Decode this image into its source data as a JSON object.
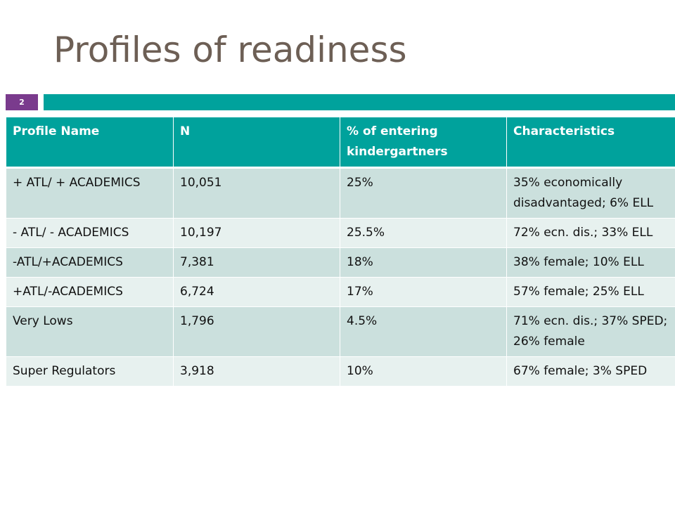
{
  "slide": {
    "title": "Profiles of readiness",
    "number": "2"
  },
  "colors": {
    "accent_teal": "#00a29c",
    "number_purple": "#7a3b8d",
    "title_brown": "#6d5f55",
    "row_dark": "#cbe0dd",
    "row_light": "#e7f1ef"
  },
  "table": {
    "headers": [
      "Profile Name",
      "N",
      "% of entering kindergartners",
      "Characteristics"
    ],
    "rows": [
      [
        "+ ATL/ + ACADEMICS",
        "10,051",
        "25%",
        "35% economically disadvantaged; 6% ELL"
      ],
      [
        "- ATL/ - ACADEMICS",
        "10,197",
        "25.5%",
        "72% ecn. dis.; 33% ELL"
      ],
      [
        "-ATL/+ACADEMICS",
        "7,381",
        "18%",
        "38% female; 10% ELL"
      ],
      [
        "+ATL/-ACADEMICS",
        "6,724",
        "17%",
        "57% female; 25% ELL"
      ],
      [
        "Very Lows",
        "1,796",
        "4.5%",
        "71% ecn. dis.; 37% SPED; 26% female"
      ],
      [
        "Super Regulators",
        "3,918",
        "10%",
        "67% female; 3% SPED"
      ]
    ]
  }
}
